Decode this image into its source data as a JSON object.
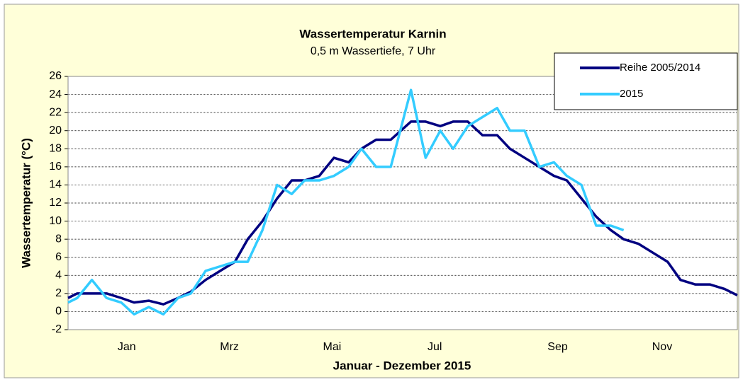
{
  "chart_data": {
    "type": "line",
    "title": "Wassertemperatur Karnin",
    "subtitle": "0,5 m Wassertiefe, 7 Uhr",
    "y_label": "Wassertemperatur  (°C)",
    "x_label": "Januar - Dezember 2015",
    "x": [
      0,
      5,
      13,
      21,
      29,
      36,
      44,
      52,
      60,
      67,
      75,
      83,
      91,
      98,
      106,
      114,
      122,
      129,
      137,
      145,
      153,
      160,
      168,
      176,
      187,
      195,
      203,
      210,
      218,
      226,
      234,
      241,
      249,
      257,
      265,
      272,
      280,
      288,
      296,
      303,
      311,
      319,
      327,
      334,
      342,
      350,
      358,
      365
    ],
    "xlim": [
      0,
      365
    ],
    "xticks": [
      {
        "value": 32,
        "label": "Jan"
      },
      {
        "value": 88,
        "label": "Mrz"
      },
      {
        "value": 144,
        "label": "Mai"
      },
      {
        "value": 200,
        "label": "Jul"
      },
      {
        "value": 267,
        "label": "Sep"
      },
      {
        "value": 324,
        "label": "Nov"
      }
    ],
    "ylim": [
      -2,
      26
    ],
    "yticks": [
      -2,
      0,
      2,
      4,
      6,
      8,
      10,
      12,
      14,
      16,
      18,
      20,
      22,
      24,
      26
    ],
    "grid": true,
    "legend": "top-right",
    "series": [
      {
        "name": "Reihe 2005/2014",
        "color": "#000080",
        "values": [
          1.5,
          2,
          2,
          2,
          1.5,
          1,
          1.2,
          0.8,
          1.5,
          2.2,
          3.5,
          4.5,
          5.5,
          8,
          10,
          12.5,
          14.5,
          14.5,
          15,
          17,
          16.5,
          18,
          19,
          19,
          21,
          21,
          20.5,
          21,
          21,
          19.5,
          19.5,
          18,
          17,
          16,
          15,
          14.5,
          12.5,
          10.5,
          9,
          8,
          7.5,
          6.5,
          5.5,
          3.5,
          3,
          3,
          2.5,
          1.8
        ]
      },
      {
        "name": "2015",
        "color": "#33ccff",
        "values": [
          1,
          1.5,
          3.5,
          1.5,
          1,
          -0.3,
          0.5,
          -0.3,
          1.5,
          2,
          4.5,
          5,
          5.5,
          5.5,
          9,
          14,
          13,
          14.5,
          14.5,
          15,
          16,
          18,
          16,
          16,
          24.5,
          17,
          20,
          18,
          20.5,
          21.5,
          22.5,
          20,
          20,
          16,
          16.5,
          15,
          14,
          9.5,
          9.5,
          9,
          null,
          null,
          null,
          null,
          null,
          null,
          null,
          null
        ]
      }
    ]
  }
}
